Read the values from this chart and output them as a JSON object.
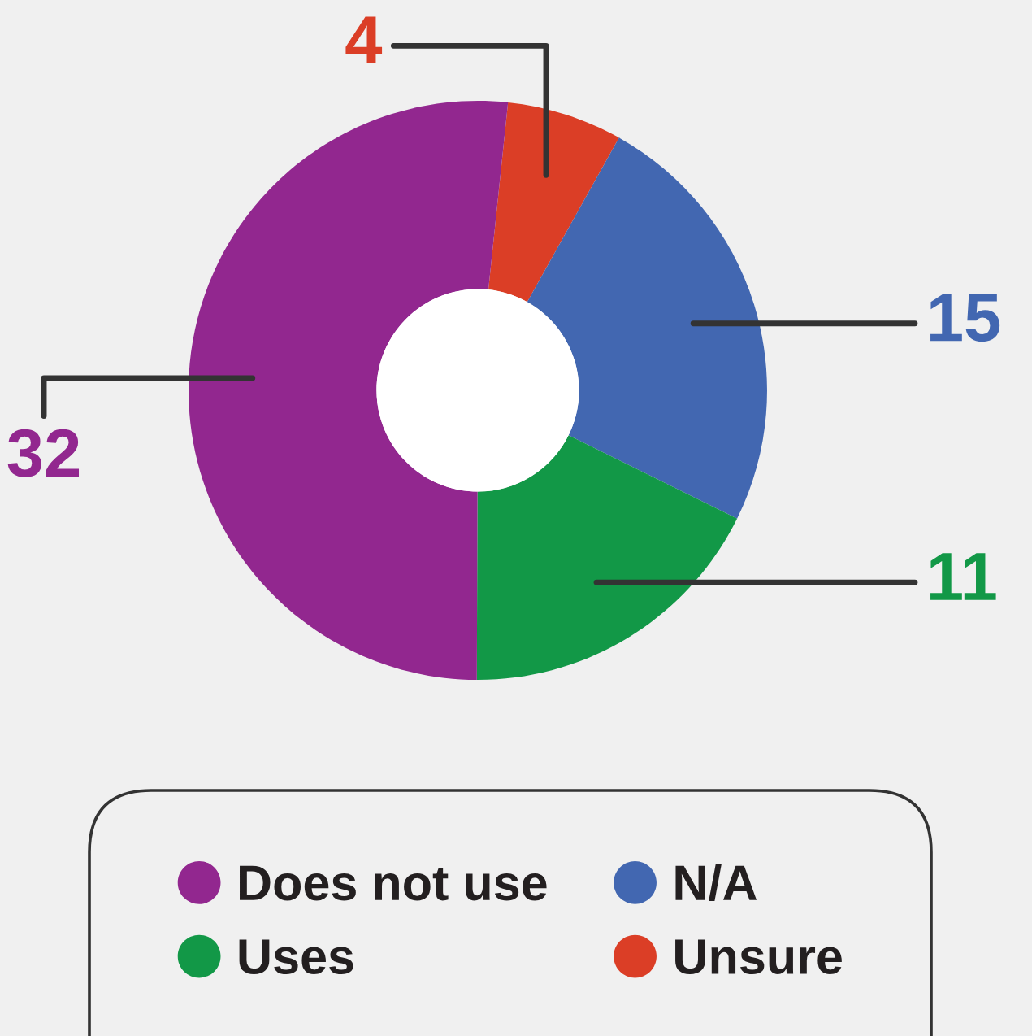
{
  "chart_data": {
    "type": "donut",
    "categories": [
      "Unsure",
      "N/A",
      "Uses",
      "Does not use"
    ],
    "values": [
      4,
      15,
      11,
      32
    ],
    "colors": [
      "#db3e26",
      "#4267b1",
      "#129847",
      "#92278f"
    ],
    "data_labels": true,
    "legend": "bottom"
  }
}
